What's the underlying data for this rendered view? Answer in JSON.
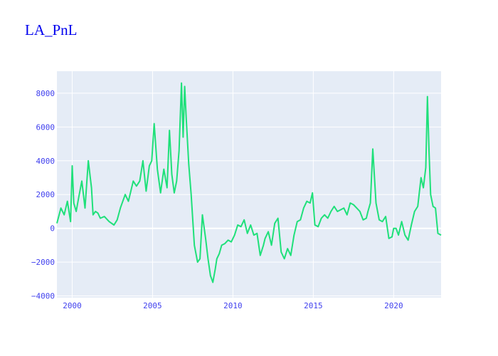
{
  "chart_data": {
    "type": "line",
    "title": "LA_PnL",
    "xlabel": "",
    "ylabel": "",
    "xlim": [
      1999.05,
      2022.95
    ],
    "ylim": [
      -4100,
      9300
    ],
    "x_ticks": [
      2000,
      2005,
      2010,
      2015,
      2020
    ],
    "x_tick_labels": [
      "2000",
      "2005",
      "2010",
      "2015",
      "2020"
    ],
    "y_ticks": [
      -4000,
      -2000,
      0,
      2000,
      4000,
      6000,
      8000
    ],
    "y_tick_labels": [
      "−4000",
      "−2000",
      "0",
      "2000",
      "4000",
      "6000",
      "8000"
    ],
    "grid": true,
    "legend": "none",
    "colors": {
      "line": "#1fe07a",
      "plot_bg": "#e5ecf6",
      "grid": "#ffffff",
      "title": "#0000ee",
      "ticks": "#4040ee"
    },
    "series": [
      {
        "x": [
          1999.05,
          1999.3,
          1999.5,
          1999.7,
          1999.9,
          2000.0,
          2000.1,
          2000.25,
          2000.4,
          2000.6,
          2000.8,
          2001.0,
          2001.2,
          2001.3,
          2001.45,
          2001.6,
          2001.75,
          2002.0,
          2002.3,
          2002.6,
          2002.8,
          2003.0,
          2003.3,
          2003.5,
          2003.8,
          2004.0,
          2004.2,
          2004.4,
          2004.6,
          2004.8,
          2004.95,
          2005.1,
          2005.3,
          2005.5,
          2005.7,
          2005.9,
          2006.05,
          2006.2,
          2006.35,
          2006.5,
          2006.65,
          2006.8,
          2006.9,
          2007.0,
          2007.1,
          2007.25,
          2007.4,
          2007.6,
          2007.8,
          2007.95,
          2008.1,
          2008.3,
          2008.45,
          2008.6,
          2008.75,
          2008.9,
          2009.0,
          2009.15,
          2009.3,
          2009.5,
          2009.7,
          2009.9,
          2010.1,
          2010.3,
          2010.5,
          2010.7,
          2010.9,
          2011.1,
          2011.3,
          2011.5,
          2011.7,
          2011.9,
          2012.0,
          2012.2,
          2012.4,
          2012.6,
          2012.8,
          2013.0,
          2013.2,
          2013.4,
          2013.6,
          2013.8,
          2014.0,
          2014.2,
          2014.4,
          2014.6,
          2014.8,
          2014.95,
          2015.1,
          2015.3,
          2015.5,
          2015.7,
          2015.9,
          2016.1,
          2016.3,
          2016.5,
          2016.7,
          2016.9,
          2017.1,
          2017.3,
          2017.5,
          2017.7,
          2017.9,
          2018.1,
          2018.3,
          2018.4,
          2018.55,
          2018.7,
          2018.9,
          2019.1,
          2019.3,
          2019.5,
          2019.7,
          2019.9,
          2020.0,
          2020.15,
          2020.3,
          2020.5,
          2020.7,
          2020.9,
          2021.1,
          2021.3,
          2021.5,
          2021.7,
          2021.85,
          2022.0,
          2022.1,
          2022.2,
          2022.3,
          2022.45,
          2022.6,
          2022.75,
          2022.95
        ],
        "values": [
          300,
          1200,
          800,
          1600,
          400,
          3700,
          1500,
          1000,
          1800,
          2800,
          1200,
          4000,
          2400,
          800,
          1000,
          900,
          600,
          700,
          400,
          200,
          500,
          1200,
          2000,
          1600,
          2800,
          2500,
          2800,
          4000,
          2200,
          3700,
          4000,
          6200,
          3500,
          2100,
          3500,
          2400,
          5800,
          3200,
          2100,
          2800,
          4600,
          8600,
          5400,
          8400,
          6400,
          3800,
          2000,
          -1000,
          -2000,
          -1800,
          800,
          -600,
          -1800,
          -2800,
          -3200,
          -2400,
          -1800,
          -1500,
          -1000,
          -900,
          -700,
          -800,
          -400,
          200,
          100,
          500,
          -300,
          200,
          -400,
          -300,
          -1600,
          -1000,
          -600,
          -200,
          -1000,
          300,
          600,
          -1400,
          -1800,
          -1200,
          -1600,
          -400,
          400,
          500,
          1200,
          1600,
          1500,
          2100,
          200,
          100,
          600,
          800,
          600,
          1000,
          1300,
          1000,
          1100,
          1200,
          800,
          1500,
          1400,
          1200,
          1000,
          500,
          600,
          1000,
          1500,
          4700,
          1500,
          500,
          400,
          700,
          -600,
          -500,
          0,
          0,
          -400,
          400,
          -400,
          -700,
          200,
          1000,
          1300,
          3000,
          2400,
          3600,
          7800,
          4500,
          2000,
          1300,
          1200,
          -300,
          -400
        ]
      }
    ]
  }
}
